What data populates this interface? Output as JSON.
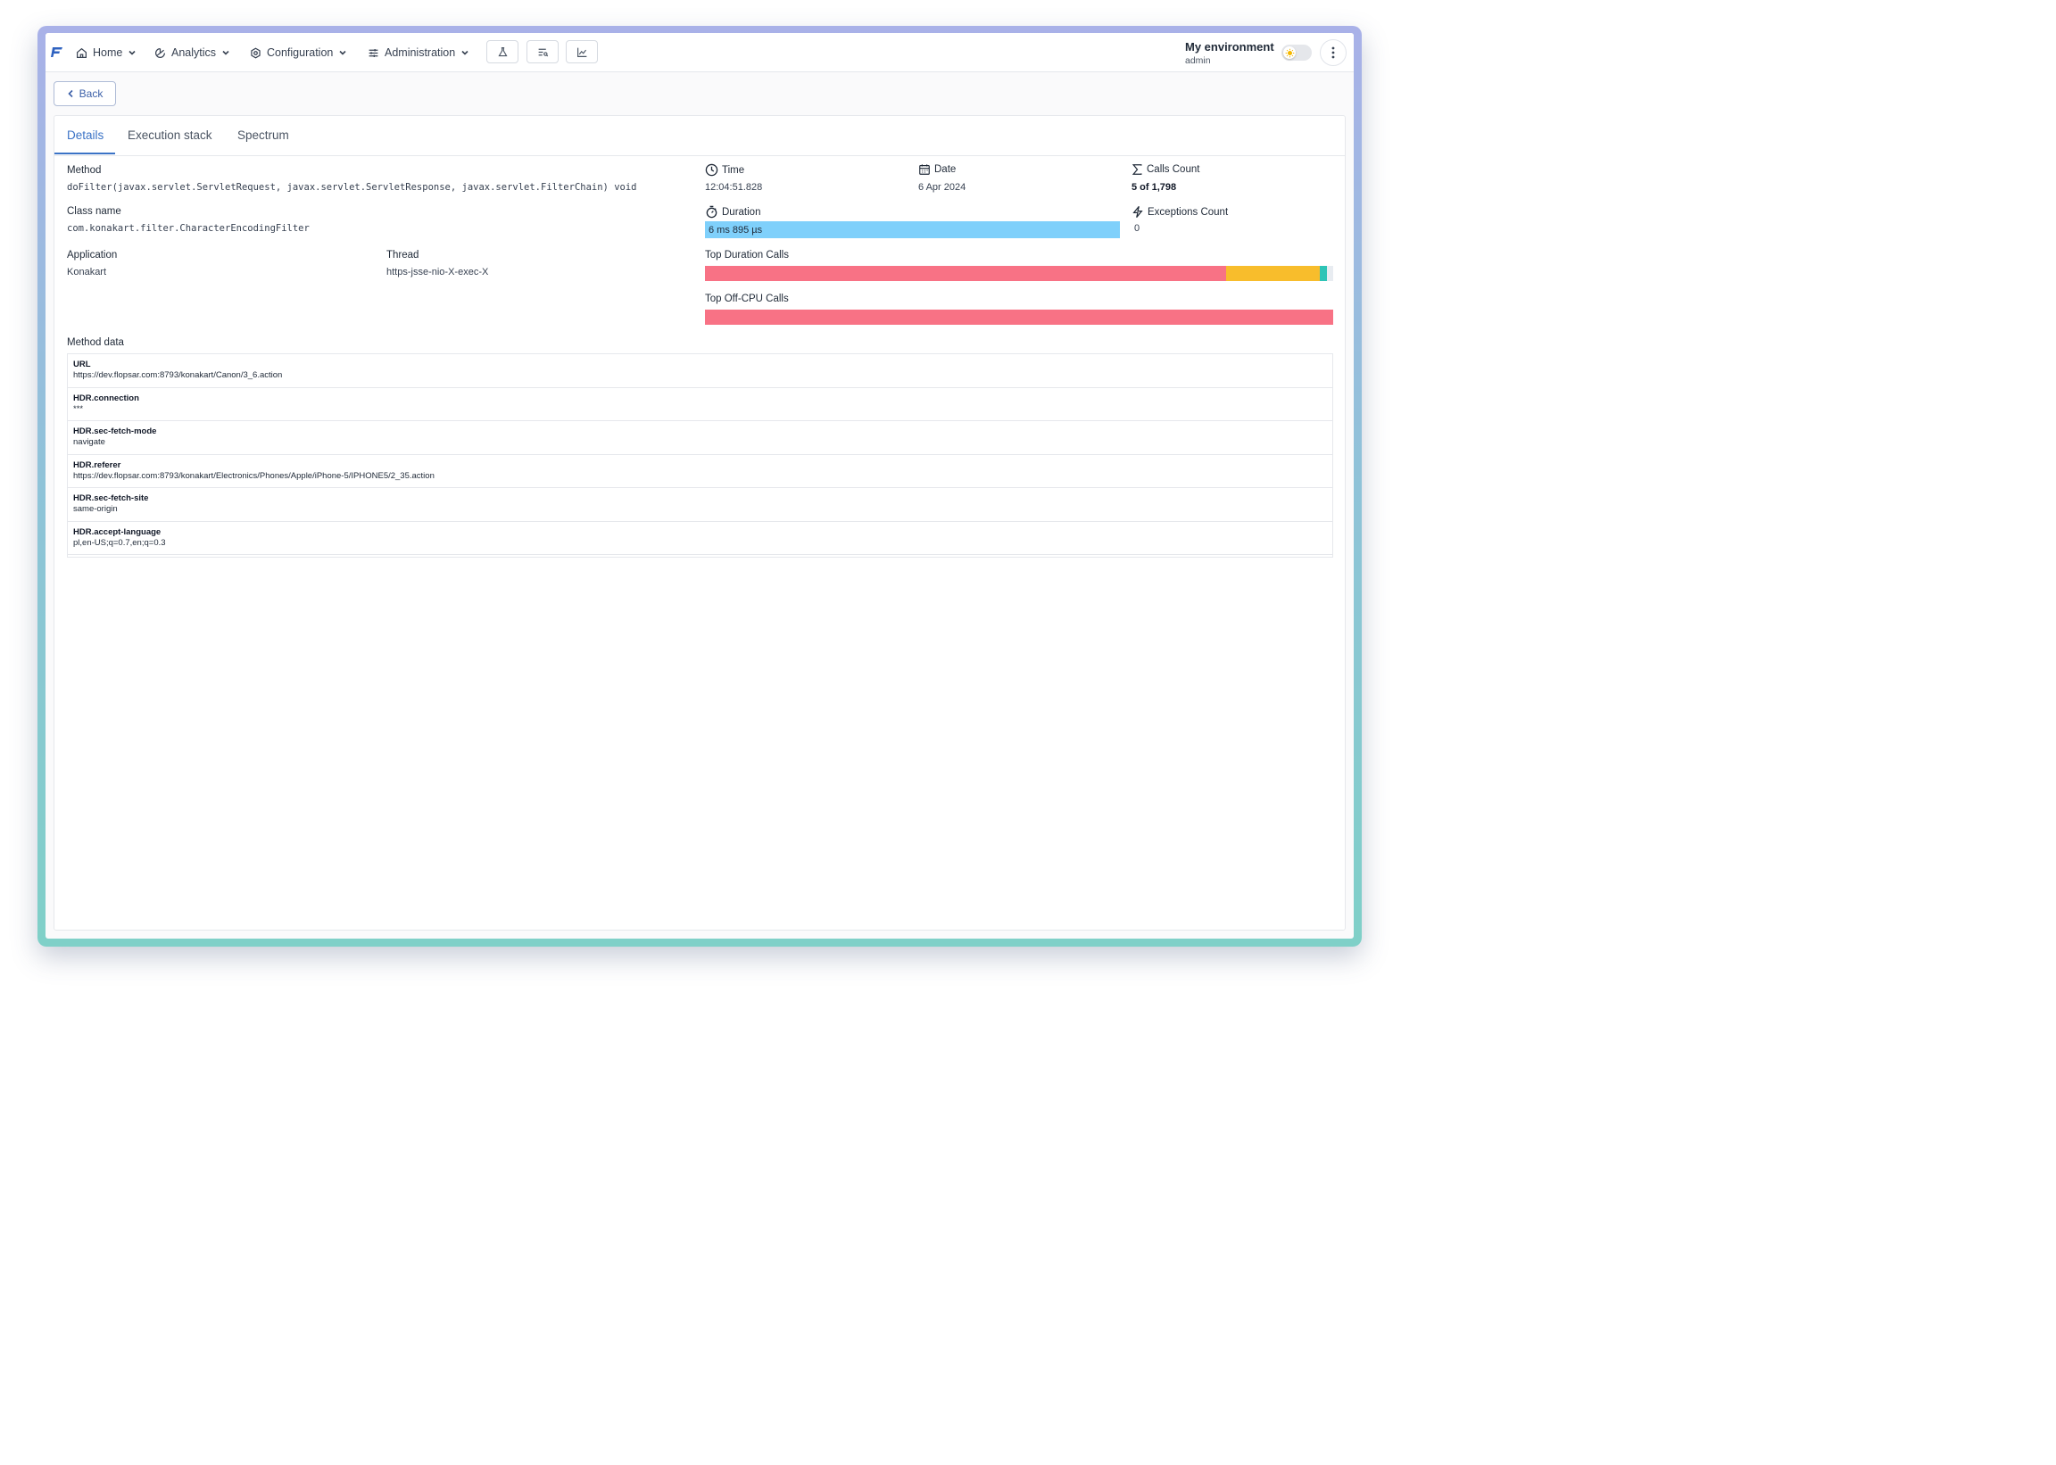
{
  "nav": {
    "items": [
      {
        "label": "Home",
        "icon": "home-icon"
      },
      {
        "label": "Analytics",
        "icon": "analytics-icon"
      },
      {
        "label": "Configuration",
        "icon": "settings-hex-icon"
      },
      {
        "label": "Administration",
        "icon": "sliders-icon"
      }
    ],
    "tools": [
      "flask-icon",
      "list-search-icon",
      "line-chart-icon"
    ]
  },
  "env": {
    "title": "My environment",
    "user": "admin"
  },
  "back_label": "Back",
  "tabs": [
    "Details",
    "Execution stack",
    "Spectrum"
  ],
  "details": {
    "method_label": "Method",
    "method_value": "doFilter(javax.servlet.ServletRequest, javax.servlet.ServletResponse, javax.servlet.FilterChain) void",
    "class_label": "Class name",
    "class_value": "com.konakart.filter.CharacterEncodingFilter",
    "application_label": "Application",
    "application_value": "Konakart",
    "thread_label": "Thread",
    "thread_value": "https-jsse-nio-X-exec-X",
    "time_label": "Time",
    "time_value": "12:04:51.828",
    "date_label": "Date",
    "date_value": "6 Apr 2024",
    "calls_label": "Calls Count",
    "calls_value": "5 of 1,798",
    "duration_label": "Duration",
    "duration_value": "6 ms 895 µs",
    "exceptions_label": "Exceptions Count",
    "exceptions_value": "0",
    "top_duration_label": "Top Duration Calls",
    "top_offcpu_label": "Top Off-CPU Calls"
  },
  "top_duration_segments": [
    {
      "fraction": 0.829,
      "color": "#f87285"
    },
    {
      "fraction": 0.15,
      "color": "#f8bd2c"
    },
    {
      "fraction": 0.011,
      "color": "#2ec4b6"
    },
    {
      "fraction": 0.01,
      "color": "#e8ecf1"
    }
  ],
  "top_offcpu_segments": [
    {
      "fraction": 1.0,
      "color": "#f87285"
    }
  ],
  "method_data_label": "Method data",
  "method_data": [
    {
      "key": "URL",
      "value": "https://dev.flopsar.com:8793/konakart/Canon/3_6.action"
    },
    {
      "key": "HDR.connection",
      "value": "***"
    },
    {
      "key": "HDR.sec-fetch-mode",
      "value": "navigate"
    },
    {
      "key": "HDR.referer",
      "value": "https://dev.flopsar.com:8793/konakart/Electronics/Phones/Apple/iPhone-5/IPHONE5/2_35.action"
    },
    {
      "key": "HDR.sec-fetch-site",
      "value": "same-origin"
    },
    {
      "key": "HDR.accept-language",
      "value": "pl,en-US;q=0.7,en;q=0.3"
    }
  ],
  "colors": {
    "accent": "#3b73c6",
    "duration_bar": "#7fd0fb"
  }
}
